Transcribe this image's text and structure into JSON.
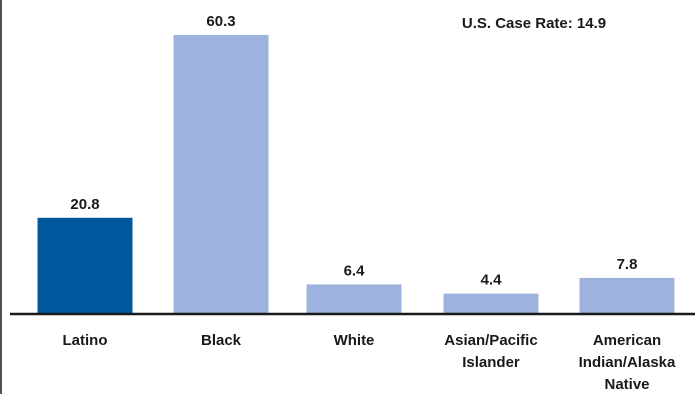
{
  "chart_data": {
    "type": "bar",
    "categories": [
      [
        "Latino"
      ],
      [
        "Black"
      ],
      [
        "White"
      ],
      [
        "Asian/Pacific",
        "Islander"
      ],
      [
        "American",
        "Indian/Alaska",
        "Native"
      ]
    ],
    "values": [
      20.8,
      60.3,
      6.4,
      4.4,
      7.8
    ],
    "value_labels": [
      "20.8",
      "60.3",
      "6.4",
      "4.4",
      "7.8"
    ],
    "bar_colors": [
      "#00589c",
      "#9db3dd",
      "#9db3dd",
      "#9db3dd",
      "#9db3dd"
    ],
    "annotation": "U.S. Case Rate: 14.9",
    "title": "",
    "xlabel": "",
    "ylabel": "",
    "ylim": [
      0,
      60.3
    ],
    "grid": false,
    "legend": "none"
  },
  "colors": {
    "highlight": "#00589c",
    "default_bar": "#9db3dd",
    "axis": "#1a1a1a"
  }
}
